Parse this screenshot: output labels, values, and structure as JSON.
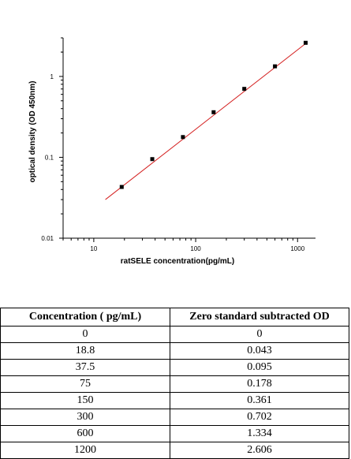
{
  "chart_data": {
    "type": "scatter",
    "xlabel": "ratSELE concentration(pg/mL)",
    "ylabel": "optical density (OD 450nm)",
    "xscale": "log",
    "yscale": "log",
    "xlim": [
      5,
      1500
    ],
    "ylim": [
      0.01,
      3
    ],
    "x_ticks": [
      10,
      100,
      1000
    ],
    "x_tick_labels": [
      "10",
      "100",
      "1000"
    ],
    "y_ticks": [
      0.01,
      0.1,
      1
    ],
    "y_tick_labels": [
      "0.01",
      "0.1",
      "1"
    ],
    "series": [
      {
        "x": [
          18.8,
          37.5,
          75,
          150,
          300,
          600,
          1200
        ],
        "y": [
          0.043,
          0.095,
          0.178,
          0.361,
          0.702,
          1.334,
          2.606
        ],
        "color": "#000000"
      }
    ],
    "fit_line": {
      "x": [
        13,
        1200
      ],
      "y": [
        0.03,
        2.55
      ],
      "color": "#d42020"
    },
    "grid": false
  },
  "table": {
    "headers": [
      "Concentration ( pg/mL)",
      "Zero standard subtracted OD"
    ],
    "rows": [
      [
        "0",
        "0"
      ],
      [
        "18.8",
        "0.043"
      ],
      [
        "37.5",
        "0.095"
      ],
      [
        "75",
        "0.178"
      ],
      [
        "150",
        "0.361"
      ],
      [
        "300",
        "0.702"
      ],
      [
        "600",
        "1.334"
      ],
      [
        "1200",
        "2.606"
      ]
    ]
  }
}
